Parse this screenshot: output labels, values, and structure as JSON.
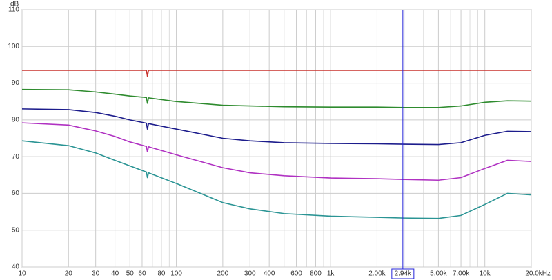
{
  "chart_data": {
    "type": "line",
    "y_unit": "dB",
    "log_x": true,
    "grid": true,
    "xlim": [
      10,
      20000
    ],
    "ylim": [
      40,
      110
    ],
    "yticks": [
      40,
      50,
      60,
      70,
      80,
      90,
      100,
      110
    ],
    "xticks": [
      10,
      20,
      30,
      40,
      50,
      60,
      80,
      100,
      200,
      300,
      400,
      600,
      800,
      {
        "value": 1000,
        "label": "1k"
      },
      {
        "value": 2000,
        "label": "2.00k"
      },
      {
        "value": 5000,
        "label": "5.00k"
      },
      {
        "value": 7000,
        "label": "7.00k"
      },
      {
        "value": 10000,
        "label": "10k"
      },
      {
        "value": 20000,
        "label": "20.0kHz"
      }
    ],
    "xgrid": [
      70,
      90,
      500,
      700,
      900,
      3000,
      4000,
      6000,
      8000,
      9000
    ],
    "cursor": {
      "value": 2940,
      "label": "2.94k",
      "color": "#2626d9"
    },
    "x": [
      10,
      20,
      30,
      40,
      50,
      64,
      65,
      66,
      100,
      200,
      300,
      500,
      1000,
      2000,
      3000,
      5000,
      7000,
      10000,
      14000,
      20000
    ],
    "series": [
      {
        "color": "#c8322d",
        "values": [
          93.5,
          93.5,
          93.5,
          93.5,
          93.5,
          93.5,
          91.8,
          93.5,
          93.5,
          93.5,
          93.5,
          93.5,
          93.5,
          93.5,
          93.5,
          93.5,
          93.5,
          93.5,
          93.5,
          93.5
        ]
      },
      {
        "color": "#2e8b2e",
        "values": [
          88.3,
          88.2,
          87.6,
          87,
          86.5,
          86.1,
          84.4,
          86,
          85,
          84,
          83.8,
          83.6,
          83.5,
          83.5,
          83.4,
          83.4,
          83.8,
          84.8,
          85.2,
          85.1
        ]
      },
      {
        "color": "#1c1c8c",
        "values": [
          83,
          82.8,
          82,
          81,
          80,
          79.1,
          77.4,
          79,
          77.5,
          75,
          74.3,
          73.8,
          73.6,
          73.5,
          73.4,
          73.3,
          73.8,
          75.8,
          76.9,
          76.8
        ]
      },
      {
        "color": "#b031c2",
        "values": [
          79.2,
          78.6,
          77,
          75.5,
          74,
          72.8,
          71.2,
          72.7,
          70.5,
          67,
          65.6,
          64.8,
          64.2,
          64,
          63.8,
          63.6,
          64.3,
          66.8,
          69,
          68.7
        ]
      },
      {
        "color": "#2a9494",
        "values": [
          74.3,
          73,
          71,
          69,
          67.5,
          65.8,
          64.2,
          65.6,
          62.7,
          57.5,
          55.8,
          54.5,
          53.8,
          53.5,
          53.3,
          53.2,
          54,
          57,
          60,
          59.6
        ]
      }
    ]
  }
}
